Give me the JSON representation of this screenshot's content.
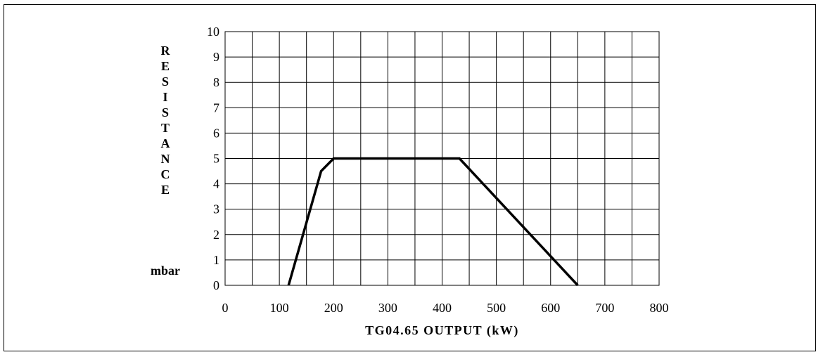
{
  "chart_data": {
    "type": "line",
    "title": "",
    "xlabel": "TG04.65 OUTPUT (kW)",
    "ylabel": "RESISTANCE",
    "ylabel_unit": "mbar",
    "xlim": [
      0,
      800
    ],
    "ylim": [
      0,
      10
    ],
    "x_ticks": [
      "0",
      "100",
      "200",
      "300",
      "400",
      "500",
      "600",
      "700",
      "800"
    ],
    "y_ticks": [
      "0",
      "1",
      "2",
      "3",
      "4",
      "5",
      "6",
      "7",
      "8",
      "9",
      "10"
    ],
    "x_grid_step": 50,
    "y_grid_step": 1,
    "grid": true,
    "series": [
      {
        "x": [
          117,
          177,
          200,
          432,
          650
        ],
        "y": [
          0,
          4.5,
          5,
          5,
          0
        ]
      }
    ],
    "line_color": "#000000"
  }
}
